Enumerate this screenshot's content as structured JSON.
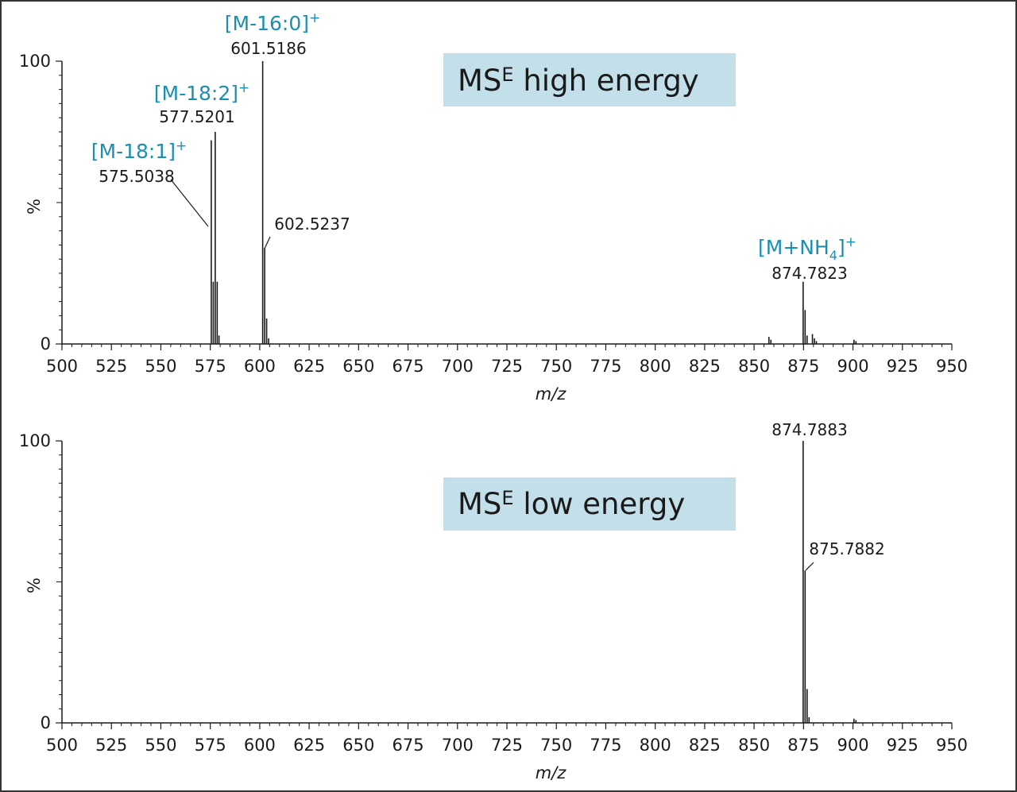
{
  "colors": {
    "ion_label": "#1b8fb0",
    "mode_box": "#c3e0ea",
    "axis": "#1a1a1a",
    "peak": "#1a1a1a"
  },
  "chart_data": [
    {
      "type": "bar",
      "title": "MSE high energy",
      "mode_label": {
        "base": "MS",
        "sup": "E",
        "rest": " high energy"
      },
      "xlabel": "m/z",
      "ylabel": "%",
      "xlim": [
        500,
        950
      ],
      "ylim": [
        0,
        100
      ],
      "xticks": [
        500,
        525,
        550,
        575,
        600,
        625,
        650,
        675,
        700,
        725,
        750,
        775,
        800,
        825,
        850,
        875,
        900,
        925,
        950
      ],
      "yticks": [
        0,
        100
      ],
      "ytick_labels": [
        "0",
        "100"
      ],
      "peaks": [
        {
          "mz": 575.5,
          "intensity": 72
        },
        {
          "mz": 576.5,
          "intensity": 22
        },
        {
          "mz": 577.5,
          "intensity": 75
        },
        {
          "mz": 578.5,
          "intensity": 22
        },
        {
          "mz": 579.4,
          "intensity": 3
        },
        {
          "mz": 601.5,
          "intensity": 100
        },
        {
          "mz": 602.5,
          "intensity": 34
        },
        {
          "mz": 603.5,
          "intensity": 9
        },
        {
          "mz": 604.5,
          "intensity": 2
        },
        {
          "mz": 857.5,
          "intensity": 2.5
        },
        {
          "mz": 858.5,
          "intensity": 1.5
        },
        {
          "mz": 874.8,
          "intensity": 22
        },
        {
          "mz": 875.8,
          "intensity": 12
        },
        {
          "mz": 876.8,
          "intensity": 3
        },
        {
          "mz": 879.5,
          "intensity": 3.5
        },
        {
          "mz": 880.5,
          "intensity": 2
        },
        {
          "mz": 881.5,
          "intensity": 1
        },
        {
          "mz": 900.5,
          "intensity": 1.5
        },
        {
          "mz": 901.5,
          "intensity": 1
        }
      ],
      "annotations": [
        {
          "text": "575.5038",
          "ion": "[M-18:1]",
          "ion_sup": "+",
          "mz": 575.5,
          "leader": true
        },
        {
          "text": "577.5201",
          "ion": "[M-18:2]",
          "ion_sup": "+",
          "mz": 577.5,
          "leader": false
        },
        {
          "text": "601.5186",
          "ion": "[M-16:0]",
          "ion_sup": "+",
          "mz": 601.5,
          "leader": false
        },
        {
          "text": "602.5237",
          "ion": "",
          "ion_sup": "",
          "mz": 602.5,
          "leader": true
        },
        {
          "text": "874.7823",
          "ion": "[M+NH",
          "ion_sub": "4",
          "ion_after": "]",
          "ion_sup": "+",
          "mz": 874.8,
          "leader": false
        }
      ]
    },
    {
      "type": "bar",
      "title": "MSE low energy",
      "mode_label": {
        "base": "MS",
        "sup": "E",
        "rest": " low energy"
      },
      "xlabel": "m/z",
      "ylabel": "%",
      "xlim": [
        500,
        950
      ],
      "ylim": [
        0,
        100
      ],
      "xticks": [
        500,
        525,
        550,
        575,
        600,
        625,
        650,
        675,
        700,
        725,
        750,
        775,
        800,
        825,
        850,
        875,
        900,
        925,
        950
      ],
      "yticks": [
        0,
        100
      ],
      "ytick_labels": [
        "0",
        "100"
      ],
      "peaks": [
        {
          "mz": 874.8,
          "intensity": 100
        },
        {
          "mz": 875.8,
          "intensity": 54
        },
        {
          "mz": 876.8,
          "intensity": 12
        },
        {
          "mz": 877.8,
          "intensity": 2
        },
        {
          "mz": 900.5,
          "intensity": 1.5
        },
        {
          "mz": 901.5,
          "intensity": 1
        }
      ],
      "annotations": [
        {
          "text": "874.7883",
          "ion": "",
          "ion_sup": "",
          "mz": 874.8,
          "leader": false
        },
        {
          "text": "875.7882",
          "ion": "",
          "ion_sup": "",
          "mz": 875.8,
          "leader": true
        }
      ]
    }
  ]
}
